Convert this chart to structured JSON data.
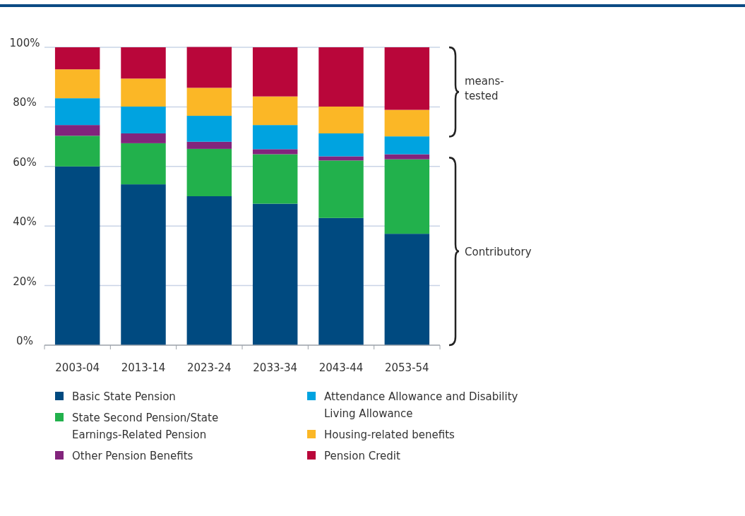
{
  "chart_data": {
    "type": "bar",
    "stacked": true,
    "categories": [
      "2003-04",
      "2013-14",
      "2023-24",
      "2033-34",
      "2043-44",
      "2053-54"
    ],
    "series": [
      {
        "name": "Basic State Pension",
        "color": "#004a80",
        "values": [
          60,
          54,
          50,
          47.5,
          42.7,
          37.4
        ]
      },
      {
        "name": "State Second Pension/State Earnings-Related Pension",
        "color": "#22b14c",
        "values": [
          10.3,
          13.8,
          15.9,
          16.6,
          19.3,
          25
        ]
      },
      {
        "name": "Other Pension Benefits",
        "color": "#82247c",
        "values": [
          3.6,
          3.3,
          2.4,
          1.7,
          1.4,
          1.7
        ]
      },
      {
        "name": "Attendance Allowance and Disability Living Allowance",
        "color": "#00a3e0",
        "values": [
          9,
          9,
          8.7,
          8.1,
          7.7,
          6
        ]
      },
      {
        "name": "Housing-related benefits",
        "color": "#fbb726",
        "values": [
          9.7,
          9.4,
          9.4,
          9.6,
          9,
          8.9
        ]
      },
      {
        "name": "Pension Credit",
        "color": "#b9063a",
        "values": [
          7.4,
          10.5,
          13.7,
          16.5,
          19.9,
          21
        ]
      }
    ],
    "ylim": [
      0,
      100
    ],
    "yticks": [
      {
        "value": 0,
        "label": "0%"
      },
      {
        "value": 20,
        "label": "20%"
      },
      {
        "value": 40,
        "label": "40%"
      },
      {
        "value": 60,
        "label": "60%"
      },
      {
        "value": 80,
        "label": "80%"
      },
      {
        "value": 100,
        "label": "100%"
      }
    ],
    "grid": "y",
    "legend": "bottom",
    "annotations": [
      "means-tested",
      "Contributory"
    ]
  }
}
